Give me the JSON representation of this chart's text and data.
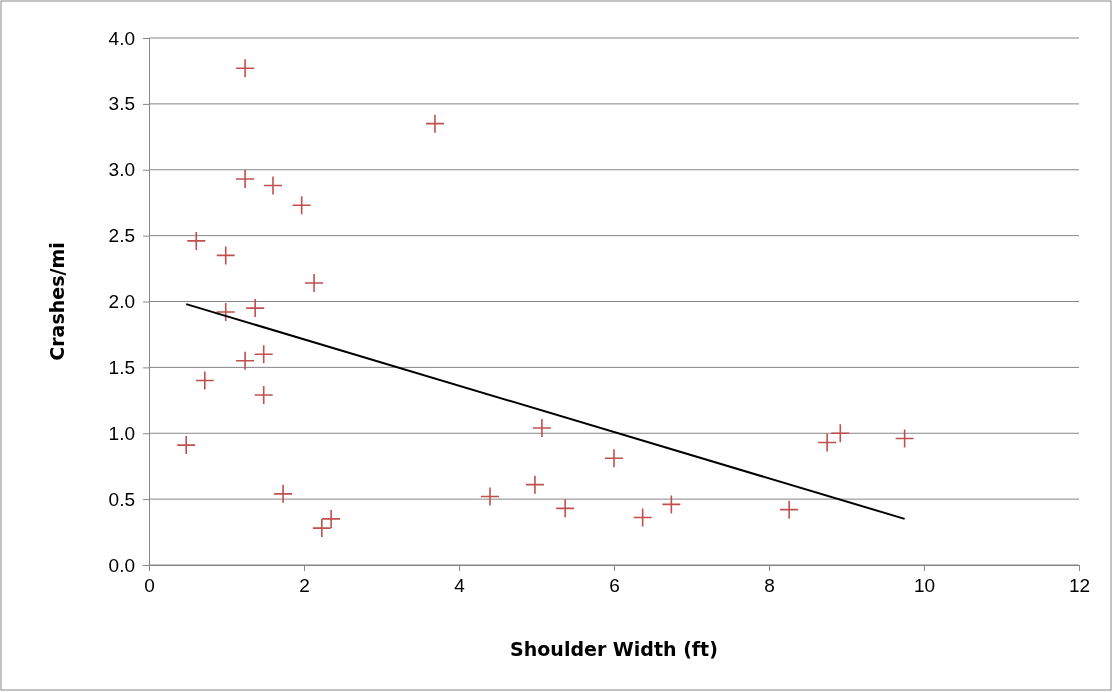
{
  "chart_data": {
    "type": "scatter",
    "xlabel": "Shoulder Width (ft)",
    "ylabel": "Crashes/mi",
    "xlim": [
      0,
      12
    ],
    "xticks": [
      0,
      2,
      4,
      6,
      8,
      10,
      12
    ],
    "ylim": [
      0,
      4
    ],
    "yticks": [
      {
        "value": 0,
        "label": "0.0"
      },
      {
        "value": 0.5,
        "label": "0.5"
      },
      {
        "value": 1,
        "label": "1.0"
      },
      {
        "value": 1.5,
        "label": "1.5"
      },
      {
        "value": 2,
        "label": "2.0"
      },
      {
        "value": 2.5,
        "label": "2.5"
      },
      {
        "value": 3,
        "label": "3.0"
      },
      {
        "value": 3.5,
        "label": "3.5"
      },
      {
        "value": 4,
        "label": "4.0"
      }
    ],
    "grid": "y",
    "series": [
      {
        "marker": "cross",
        "color": "#c0504d",
        "x": [
          1.24,
          3.69,
          1.24,
          1.6,
          1.97,
          0.61,
          0.99,
          2.13,
          1.37,
          0.99,
          1.48,
          1.24,
          0.72,
          1.48,
          0.48,
          1.73,
          2.23,
          2.35,
          4.4,
          5.07,
          4.98,
          5.37,
          6.0,
          6.37,
          6.74,
          8.26,
          8.75,
          8.92,
          9.75
        ],
        "values": [
          3.77,
          3.35,
          2.93,
          2.88,
          2.73,
          2.46,
          2.35,
          2.14,
          1.95,
          1.92,
          1.6,
          1.55,
          1.4,
          1.29,
          0.91,
          0.54,
          0.28,
          0.35,
          0.52,
          1.04,
          0.61,
          0.43,
          0.81,
          0.36,
          0.46,
          0.42,
          0.93,
          1.0,
          0.96
        ]
      },
      {
        "type": "line",
        "color": "#000000",
        "x": [
          0.48,
          9.75
        ],
        "values": [
          1.98,
          0.35
        ]
      }
    ]
  }
}
